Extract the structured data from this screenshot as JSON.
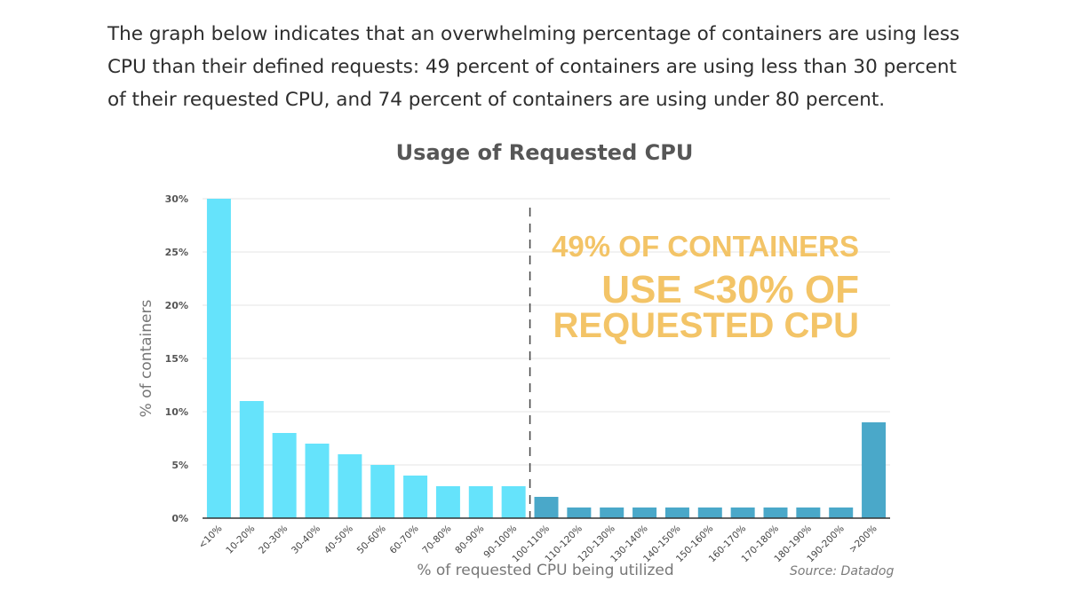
{
  "intro_text": "The graph below indicates that an overwhelming percentage of containers are using less CPU than their defined requests: 49 percent of containers are using less than 30 percent of their requested CPU, and 74 percent of containers are using under 80 percent.",
  "source": "Source: Datadog",
  "colors": {
    "bar_light": "#65e3fb",
    "bar_dark": "#4aa8c9",
    "callout": "#f3c467",
    "axis": "#333333",
    "grid": "#e6e6e6",
    "text": "#555555"
  },
  "chart_data": {
    "type": "bar",
    "title": "Usage of Requested CPU",
    "xlabel": "% of requested CPU being utilized",
    "ylabel": "% of containers",
    "ylim": [
      0,
      30
    ],
    "yticks": [
      "0%",
      "5%",
      "10%",
      "15%",
      "20%",
      "25%",
      "30%"
    ],
    "ytick_values": [
      0,
      5,
      10,
      15,
      20,
      25,
      30
    ],
    "grid": true,
    "categories": [
      "<10%",
      "10-20%",
      "20-30%",
      "30-40%",
      "40-50%",
      "50-60%",
      "60-70%",
      "70-80%",
      "80-90%",
      "90-100%",
      "100-110%",
      "110-120%",
      "120-130%",
      "130-140%",
      "140-150%",
      "150-160%",
      "160-170%",
      "170-180%",
      "180-190%",
      "190-200%",
      ">200%"
    ],
    "values": [
      30,
      11,
      8,
      7,
      6,
      5,
      4,
      3,
      3,
      3,
      2,
      1,
      1,
      1,
      1,
      1,
      1,
      1,
      1,
      1,
      9
    ],
    "threshold_line_after": "90-100%",
    "annotation": [
      "49% OF CONTAINERS",
      "USE <30% OF",
      "REQUESTED CPU"
    ]
  }
}
